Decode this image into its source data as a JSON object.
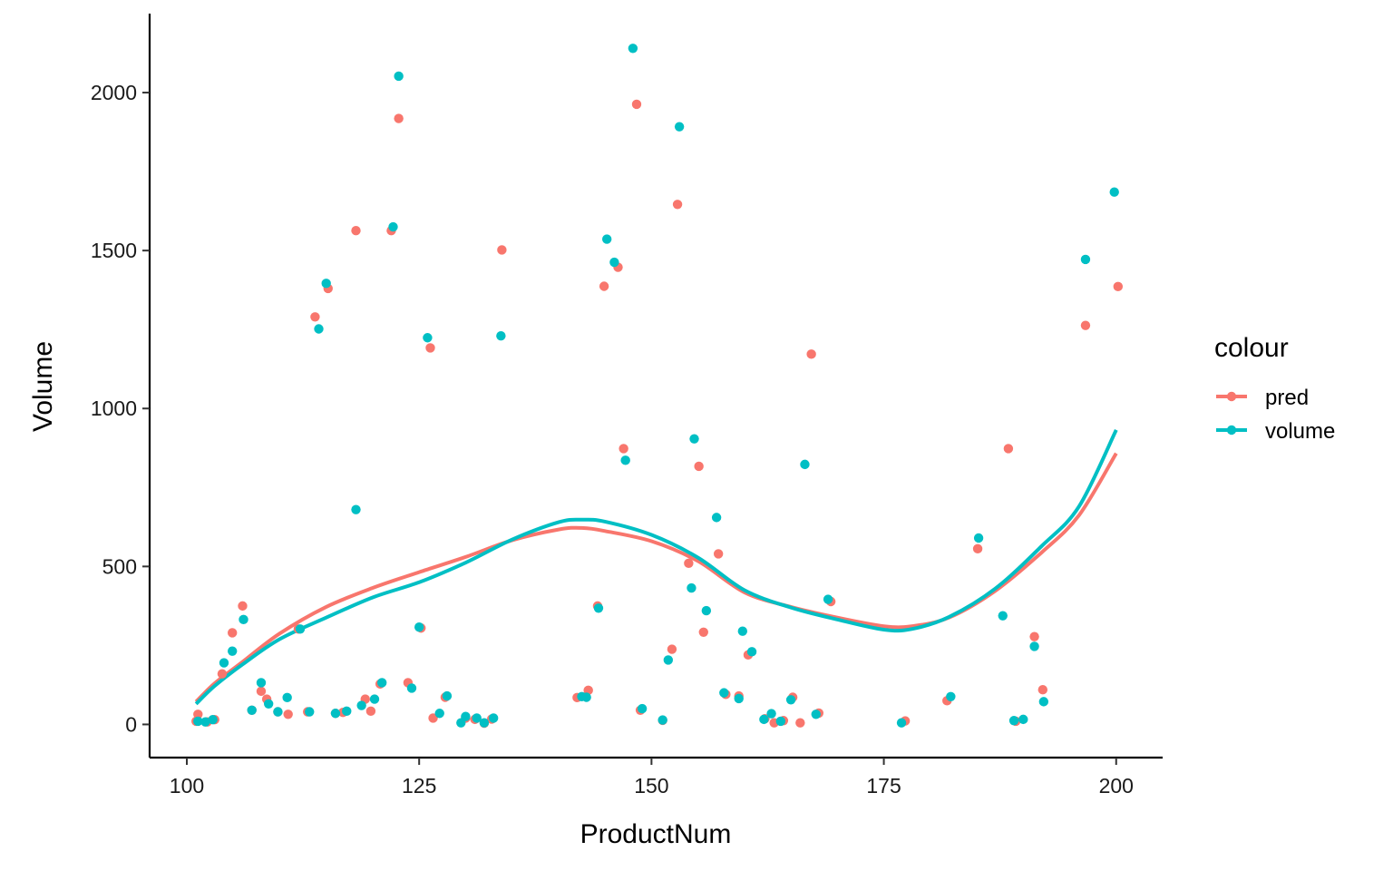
{
  "chart_data": {
    "type": "scatter",
    "xlabel": "ProductNum",
    "ylabel": "Volume",
    "xlim": [
      96,
      205
    ],
    "ylim": [
      -105,
      2250
    ],
    "x_ticks": [
      100,
      125,
      150,
      175,
      200
    ],
    "y_ticks": [
      0,
      500,
      1000,
      1500,
      2000
    ],
    "grid": false,
    "legend": {
      "title": "colour",
      "placement": "right"
    },
    "series": [
      {
        "name": "pred",
        "color": "#F8766D",
        "points": [
          [
            101,
            10
          ],
          [
            101.2,
            32
          ],
          [
            102.2,
            8
          ],
          [
            103,
            15
          ],
          [
            103.8,
            160
          ],
          [
            104.9,
            290
          ],
          [
            106,
            375
          ],
          [
            107,
            45
          ],
          [
            108,
            105
          ],
          [
            108.6,
            80
          ],
          [
            109.8,
            40
          ],
          [
            110.9,
            32
          ],
          [
            112,
            302
          ],
          [
            113,
            40
          ],
          [
            113.8,
            1290
          ],
          [
            115.2,
            1380
          ],
          [
            116,
            35
          ],
          [
            116.8,
            38
          ],
          [
            118.2,
            1563
          ],
          [
            119.2,
            80
          ],
          [
            119.8,
            42
          ],
          [
            120.8,
            128
          ],
          [
            122,
            1563
          ],
          [
            122.8,
            1918
          ],
          [
            123.8,
            132
          ],
          [
            125.2,
            305
          ],
          [
            126.2,
            1192
          ],
          [
            126.5,
            20
          ],
          [
            127.8,
            86
          ],
          [
            130,
            20
          ],
          [
            131,
            16
          ],
          [
            132,
            4
          ],
          [
            132.8,
            17
          ],
          [
            133.9,
            1502
          ],
          [
            142,
            85
          ],
          [
            143.2,
            108
          ],
          [
            144.2,
            375
          ],
          [
            144.9,
            1387
          ],
          [
            146.4,
            1447
          ],
          [
            147,
            873
          ],
          [
            148.4,
            1963
          ],
          [
            148.8,
            45
          ],
          [
            151.2,
            13
          ],
          [
            152.2,
            238
          ],
          [
            152.8,
            1646
          ],
          [
            154,
            510
          ],
          [
            155.1,
            817
          ],
          [
            155.6,
            292
          ],
          [
            157.2,
            540
          ],
          [
            158,
            95
          ],
          [
            159.4,
            90
          ],
          [
            160.4,
            220
          ],
          [
            162.2,
            18
          ],
          [
            163.2,
            5
          ],
          [
            164.2,
            12
          ],
          [
            165.2,
            86
          ],
          [
            166,
            5
          ],
          [
            167.2,
            1172
          ],
          [
            168,
            36
          ],
          [
            169.3,
            389
          ],
          [
            177.3,
            11
          ],
          [
            181.8,
            75
          ],
          [
            185.1,
            556
          ],
          [
            188.4,
            873
          ],
          [
            189.2,
            10
          ],
          [
            191.2,
            278
          ],
          [
            192.1,
            110
          ],
          [
            196.7,
            1263
          ],
          [
            200.2,
            1386
          ]
        ],
        "fit": [
          [
            101,
            72
          ],
          [
            103,
            130
          ],
          [
            106,
            198
          ],
          [
            110,
            288
          ],
          [
            115,
            372
          ],
          [
            120,
            432
          ],
          [
            125,
            482
          ],
          [
            130,
            530
          ],
          [
            135,
            583
          ],
          [
            140,
            617
          ],
          [
            142.5,
            622
          ],
          [
            145,
            612
          ],
          [
            150,
            580
          ],
          [
            155,
            517
          ],
          [
            160,
            418
          ],
          [
            165,
            372
          ],
          [
            170,
            338
          ],
          [
            175,
            311
          ],
          [
            178,
            311
          ],
          [
            182,
            338
          ],
          [
            187,
            423
          ],
          [
            192,
            545
          ],
          [
            196,
            662
          ],
          [
            200,
            858
          ]
        ]
      },
      {
        "name": "volume",
        "color": "#00BFC4",
        "points": [
          [
            101.2,
            10
          ],
          [
            102,
            8
          ],
          [
            102.8,
            15
          ],
          [
            104,
            195
          ],
          [
            104.9,
            232
          ],
          [
            106.1,
            332
          ],
          [
            107,
            45
          ],
          [
            108,
            132
          ],
          [
            108.8,
            65
          ],
          [
            109.8,
            40
          ],
          [
            110.8,
            85
          ],
          [
            112.2,
            302
          ],
          [
            113.2,
            40
          ],
          [
            114.2,
            1252
          ],
          [
            115,
            1396
          ],
          [
            116,
            35
          ],
          [
            117.2,
            42
          ],
          [
            118.2,
            680
          ],
          [
            118.8,
            60
          ],
          [
            120.2,
            80
          ],
          [
            121,
            132
          ],
          [
            122.2,
            1575
          ],
          [
            122.8,
            2052
          ],
          [
            124.2,
            115
          ],
          [
            125,
            308
          ],
          [
            125.9,
            1224
          ],
          [
            127.2,
            35
          ],
          [
            128,
            90
          ],
          [
            129.5,
            5
          ],
          [
            130,
            25
          ],
          [
            131.2,
            20
          ],
          [
            132,
            5
          ],
          [
            133,
            20
          ],
          [
            133.8,
            1230
          ],
          [
            142.5,
            88
          ],
          [
            143,
            86
          ],
          [
            144.3,
            368
          ],
          [
            145.2,
            1536
          ],
          [
            146,
            1463
          ],
          [
            147.2,
            836
          ],
          [
            148,
            2140
          ],
          [
            149,
            50
          ],
          [
            151.2,
            14
          ],
          [
            151.8,
            204
          ],
          [
            153,
            1892
          ],
          [
            154.3,
            432
          ],
          [
            154.6,
            904
          ],
          [
            155.9,
            360
          ],
          [
            157,
            655
          ],
          [
            157.8,
            100
          ],
          [
            159.4,
            82
          ],
          [
            159.8,
            295
          ],
          [
            160.8,
            230
          ],
          [
            162.1,
            16
          ],
          [
            162.9,
            34
          ],
          [
            163.9,
            10
          ],
          [
            165,
            78
          ],
          [
            166.5,
            823
          ],
          [
            167.7,
            32
          ],
          [
            169,
            396
          ],
          [
            176.9,
            5
          ],
          [
            182.2,
            88
          ],
          [
            185.2,
            590
          ],
          [
            187.8,
            344
          ],
          [
            189,
            12
          ],
          [
            190,
            16
          ],
          [
            191.2,
            247
          ],
          [
            192.2,
            72
          ],
          [
            196.7,
            1472
          ],
          [
            199.8,
            1685
          ]
        ],
        "fit": [
          [
            101,
            65
          ],
          [
            103,
            122
          ],
          [
            106,
            190
          ],
          [
            110,
            270
          ],
          [
            115,
            338
          ],
          [
            120,
            402
          ],
          [
            125,
            450
          ],
          [
            130,
            512
          ],
          [
            135,
            585
          ],
          [
            140,
            640
          ],
          [
            142.5,
            648
          ],
          [
            145,
            642
          ],
          [
            150,
            600
          ],
          [
            155,
            528
          ],
          [
            160,
            425
          ],
          [
            165,
            370
          ],
          [
            170,
            332
          ],
          [
            175,
            300
          ],
          [
            178,
            302
          ],
          [
            182,
            340
          ],
          [
            187,
            430
          ],
          [
            192,
            565
          ],
          [
            196,
            690
          ],
          [
            200,
            932
          ]
        ]
      }
    ]
  }
}
